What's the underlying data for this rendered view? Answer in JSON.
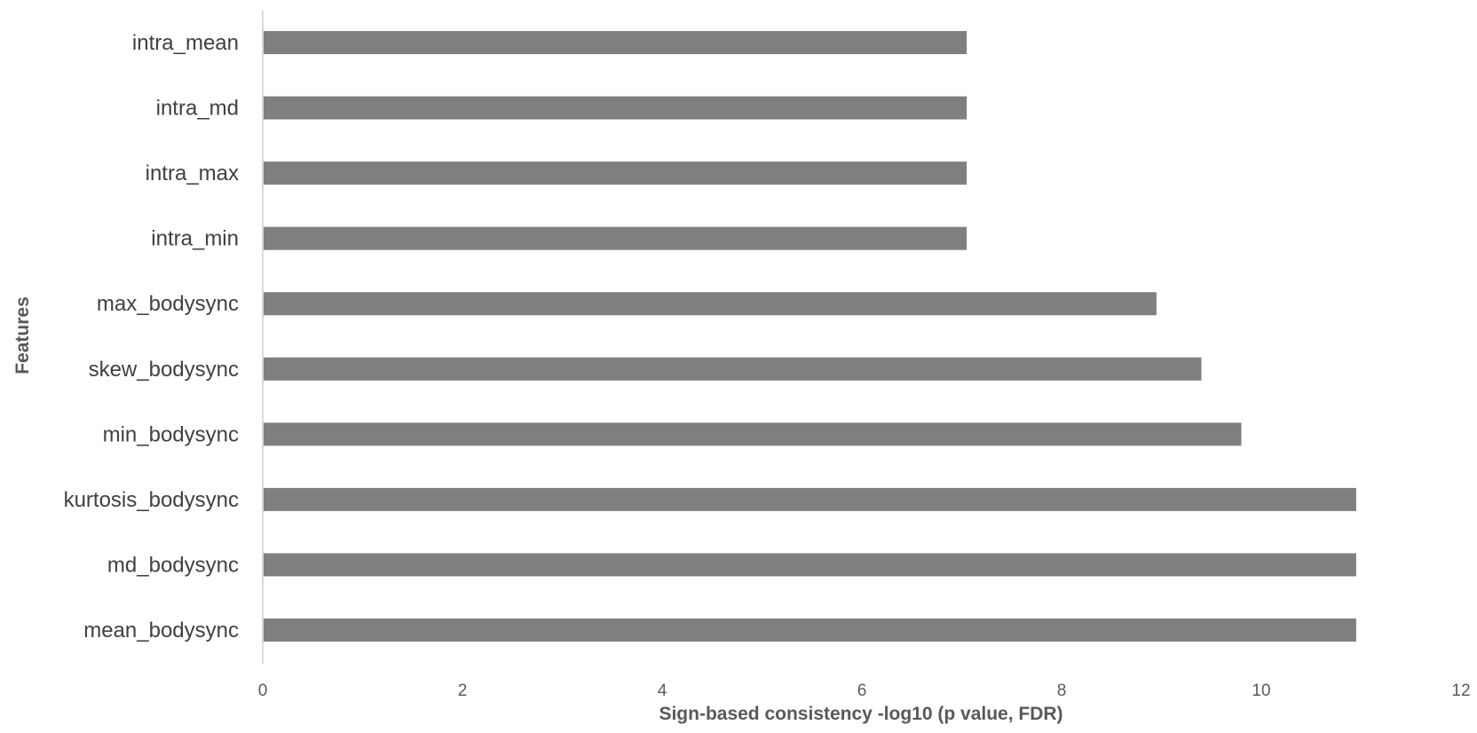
{
  "chart_data": {
    "type": "bar",
    "orientation": "horizontal",
    "title": "",
    "xlabel": "Sign-based consistency -log10 (p value, FDR)",
    "ylabel": "Features",
    "categories": [
      "intra_mean",
      "intra_md",
      "intra_max",
      "intra_min",
      "max_bodysync",
      "skew_bodysync",
      "min_bodysync",
      "kurtosis_bodysync",
      "md_bodysync",
      "mean_bodysync"
    ],
    "values": [
      7.05,
      7.05,
      7.05,
      7.05,
      8.95,
      9.4,
      9.8,
      10.95,
      10.95,
      10.95
    ],
    "xlim": [
      0,
      12
    ],
    "xticks": [
      "0",
      "2",
      "4",
      "6",
      "8",
      "10",
      "12"
    ],
    "grid": false,
    "legend": "none",
    "bar_color": "#7f7f7f",
    "axis_color": "#d9d9d9"
  }
}
